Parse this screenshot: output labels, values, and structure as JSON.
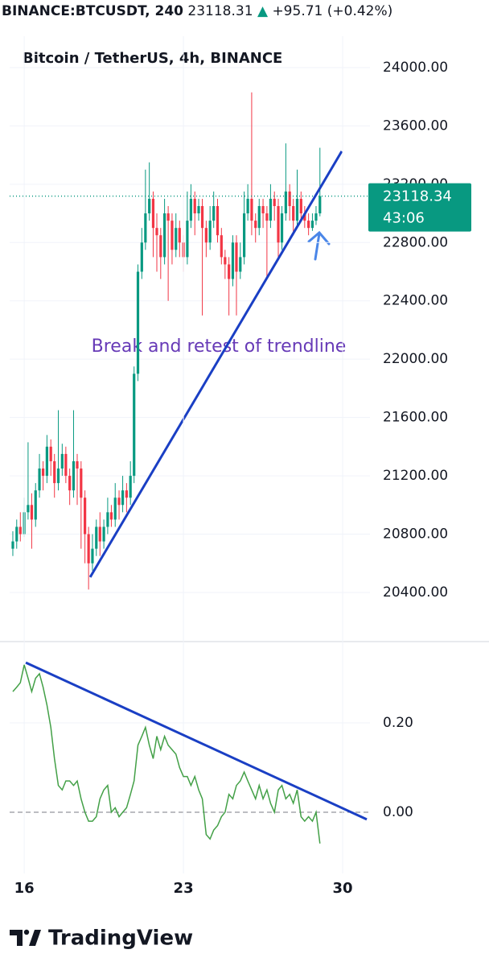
{
  "header": {
    "symbol": "BINANCE:BTCUSDT, 240",
    "price": "23118.31",
    "change": "+95.71 (+0.42%)"
  },
  "footer": {
    "brand": "TradingView"
  },
  "chart_data": [
    {
      "type": "candlestick",
      "title": "Bitcoin / TetherUS, 4h, BINANCE",
      "annotation": "Break and retest of trendline",
      "annotation_color": "#673ab7",
      "up_color": "#089981",
      "down_color": "#f23645",
      "grid": true,
      "xlim": [
        15.36,
        31.2
      ],
      "ylim": [
        20063,
        24215
      ],
      "yticks": [
        {
          "value": 24000,
          "label": "24000.00"
        },
        {
          "value": 23600,
          "label": "23600.00"
        },
        {
          "value": 23200,
          "label": "23200.00"
        },
        {
          "value": 22800,
          "label": "22800.00"
        },
        {
          "value": 22400,
          "label": "22400.00"
        },
        {
          "value": 22000,
          "label": "22000.00"
        },
        {
          "value": 21600,
          "label": "21600.00"
        },
        {
          "value": 21200,
          "label": "21200.00"
        },
        {
          "value": 20800,
          "label": "20800.00"
        },
        {
          "value": 20400,
          "label": "20400.00"
        }
      ],
      "x": [
        15.5,
        15.67,
        15.83,
        16,
        16.17,
        16.33,
        16.5,
        16.67,
        16.83,
        17,
        17.17,
        17.33,
        17.5,
        17.67,
        17.83,
        18,
        18.17,
        18.33,
        18.5,
        18.67,
        18.83,
        19,
        19.17,
        19.33,
        19.5,
        19.67,
        19.83,
        20,
        20.17,
        20.33,
        20.5,
        20.67,
        20.83,
        21,
        21.17,
        21.33,
        21.5,
        21.67,
        21.83,
        22,
        22.17,
        22.33,
        22.5,
        22.67,
        22.83,
        23,
        23.17,
        23.33,
        23.5,
        23.67,
        23.83,
        24,
        24.17,
        24.33,
        24.5,
        24.67,
        24.83,
        25,
        25.17,
        25.33,
        25.5,
        25.67,
        25.83,
        26,
        26.17,
        26.33,
        26.5,
        26.67,
        26.83,
        27,
        27.17,
        27.33,
        27.5,
        27.67,
        27.83,
        28,
        28.17,
        28.33,
        28.5,
        28.67,
        28.83,
        29
      ],
      "open": [
        20700,
        20750,
        20850,
        20800,
        20950,
        21000,
        20900,
        21100,
        21250,
        21200,
        21400,
        21300,
        21150,
        21250,
        21350,
        21200,
        21100,
        21300,
        21250,
        21050,
        20800,
        20600,
        20700,
        20850,
        20750,
        20850,
        20950,
        20900,
        21050,
        21000,
        21100,
        21050,
        21200,
        21900,
        22600,
        22800,
        23000,
        23100,
        22900,
        22850,
        22700,
        23000,
        22950,
        22750,
        22900,
        22800,
        22700,
        22950,
        23100,
        23000,
        23050,
        22900,
        22800,
        22950,
        23050,
        22850,
        22700,
        22650,
        22550,
        22800,
        22600,
        22700,
        23000,
        23100,
        22950,
        22900,
        23050,
        23000,
        22950,
        23100,
        23050,
        22800,
        23000,
        23150,
        23050,
        22950,
        23100,
        23000,
        22950,
        22900,
        22950,
        23000
      ],
      "high": [
        20820,
        20900,
        20950,
        21050,
        21430,
        21080,
        21150,
        21350,
        21300,
        21480,
        21450,
        21350,
        21650,
        21420,
        21400,
        21250,
        21650,
        21350,
        21300,
        21100,
        20850,
        20800,
        20900,
        20950,
        20900,
        21050,
        21000,
        21150,
        21100,
        21200,
        21150,
        21300,
        21950,
        22650,
        22900,
        23300,
        23350,
        23150,
        23000,
        22900,
        23100,
        23050,
        23000,
        23000,
        22950,
        22850,
        23150,
        23200,
        23150,
        23100,
        23100,
        22950,
        23050,
        23150,
        23100,
        22900,
        22750,
        22700,
        22850,
        22850,
        22800,
        23150,
        23200,
        23830,
        23000,
        23100,
        23100,
        23050,
        23200,
        23150,
        23100,
        23050,
        23480,
        23200,
        23100,
        23300,
        23150,
        23050,
        23000,
        23000,
        23050,
        23450
      ],
      "low": [
        20650,
        20700,
        20750,
        20780,
        20900,
        20700,
        20850,
        21050,
        21100,
        21150,
        21200,
        21050,
        21100,
        21200,
        21150,
        21000,
        21050,
        21000,
        20700,
        20600,
        20420,
        20550,
        20650,
        20650,
        20700,
        20800,
        20850,
        20850,
        20900,
        20950,
        20950,
        21000,
        21150,
        21850,
        22550,
        22750,
        22950,
        22700,
        22600,
        22550,
        22650,
        22400,
        22650,
        22700,
        22700,
        22600,
        22650,
        22900,
        22850,
        22950,
        22300,
        22700,
        22750,
        22900,
        22800,
        22650,
        22550,
        22300,
        22500,
        22300,
        22550,
        22650,
        22950,
        22850,
        22800,
        22850,
        22900,
        22550,
        22900,
        22950,
        22700,
        22750,
        22950,
        22950,
        22850,
        22900,
        22950,
        22900,
        22850,
        22880,
        22920,
        22980
      ],
      "close": [
        20750,
        20850,
        20800,
        20950,
        21000,
        20900,
        21100,
        21250,
        21200,
        21400,
        21300,
        21150,
        21250,
        21350,
        21200,
        21100,
        21300,
        21250,
        21050,
        20800,
        20600,
        20700,
        20850,
        20750,
        20850,
        20950,
        20900,
        21050,
        21000,
        21100,
        21050,
        21200,
        21900,
        22600,
        22800,
        23000,
        23100,
        22900,
        22850,
        22700,
        23000,
        22950,
        22750,
        22900,
        22800,
        22700,
        22950,
        23100,
        23000,
        23050,
        22900,
        22800,
        22950,
        23050,
        22850,
        22700,
        22650,
        22550,
        22800,
        22600,
        22700,
        23000,
        23100,
        22950,
        22900,
        23050,
        23000,
        22950,
        23100,
        23050,
        22800,
        23000,
        23150,
        23050,
        22950,
        23100,
        23000,
        22950,
        22900,
        22950,
        23000,
        23118.34
      ],
      "last_price": {
        "value": 23118.34,
        "countdown": "43:06",
        "color": "#089981"
      },
      "trendlines": [
        {
          "x": [
            18.9,
            29.96
          ],
          "y": [
            20505,
            23426
          ],
          "color": "#1a3fc4"
        }
      ]
    },
    {
      "type": "line",
      "xlim": [
        15.36,
        31.2
      ],
      "ylim": [
        -0.137,
        0.382
      ],
      "grid": true,
      "yticks": [
        {
          "value": 0.2,
          "label": "0.20"
        },
        {
          "value": 0,
          "label": "0.00"
        }
      ],
      "xticks": [
        16,
        23,
        30
      ],
      "x": [
        15.5,
        15.67,
        15.83,
        16,
        16.17,
        16.33,
        16.5,
        16.67,
        16.83,
        17,
        17.17,
        17.33,
        17.5,
        17.67,
        17.83,
        18,
        18.17,
        18.33,
        18.5,
        18.67,
        18.83,
        19,
        19.17,
        19.33,
        19.5,
        19.67,
        19.83,
        20,
        20.17,
        20.33,
        20.5,
        20.67,
        20.83,
        21,
        21.17,
        21.33,
        21.5,
        21.67,
        21.83,
        22,
        22.17,
        22.33,
        22.5,
        22.67,
        22.83,
        23,
        23.17,
        23.33,
        23.5,
        23.67,
        23.83,
        24,
        24.17,
        24.33,
        24.5,
        24.67,
        24.83,
        25,
        25.17,
        25.33,
        25.5,
        25.67,
        25.83,
        26,
        26.17,
        26.33,
        26.5,
        26.67,
        26.83,
        27,
        27.17,
        27.33,
        27.5,
        27.67,
        27.83,
        28,
        28.17,
        28.33,
        28.5,
        28.67,
        28.83,
        29
      ],
      "series": [
        {
          "color": "#43a047",
          "values": [
            0.27,
            0.28,
            0.29,
            0.33,
            0.3,
            0.27,
            0.3,
            0.31,
            0.28,
            0.24,
            0.19,
            0.12,
            0.06,
            0.05,
            0.07,
            0.07,
            0.06,
            0.07,
            0.03,
            0,
            -0.02,
            -0.02,
            -0.01,
            0.03,
            0.05,
            0.06,
            0,
            0.01,
            -0.01,
            0,
            0.01,
            0.04,
            0.07,
            0.15,
            0.17,
            0.19,
            0.15,
            0.12,
            0.17,
            0.14,
            0.17,
            0.15,
            0.14,
            0.13,
            0.1,
            0.08,
            0.08,
            0.06,
            0.08,
            0.05,
            0.03,
            -0.05,
            -0.06,
            -0.04,
            -0.03,
            -0.01,
            0,
            0.04,
            0.03,
            0.06,
            0.07,
            0.09,
            0.07,
            0.05,
            0.03,
            0.06,
            0.03,
            0.05,
            0.02,
            0,
            0.05,
            0.06,
            0.03,
            0.04,
            0.02,
            0.05,
            -0.01,
            -0.02,
            -0.01,
            -0.02,
            0,
            -0.07
          ]
        }
      ],
      "trendlines": [
        {
          "x": [
            16.07,
            31.06
          ],
          "y": [
            0.335,
            -0.016
          ],
          "color": "#1a3fc4"
        }
      ]
    }
  ]
}
